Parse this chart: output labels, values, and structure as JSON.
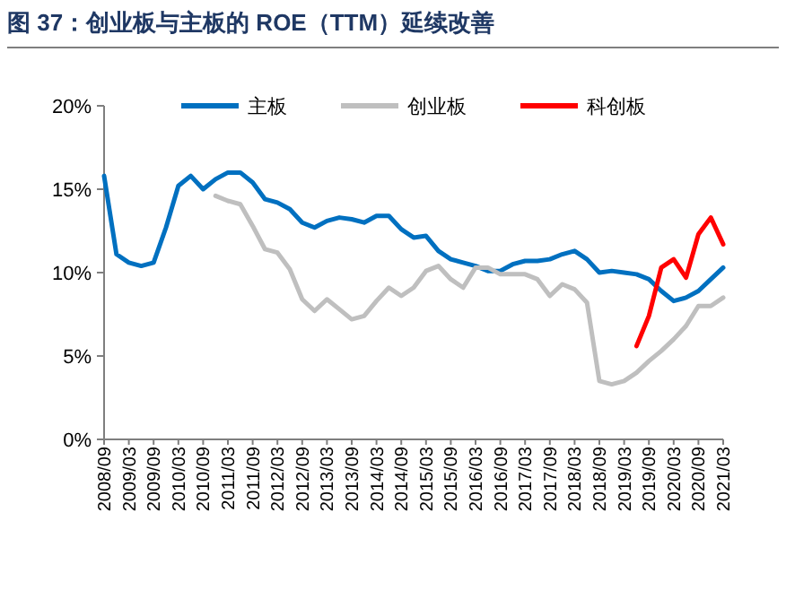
{
  "chart_data": {
    "type": "line",
    "title": "图 37：创业板与主板的 ROE（TTM）延续改善",
    "categories": [
      "2008/09",
      null,
      "2009/03",
      null,
      "2009/09",
      null,
      "2010/03",
      null,
      "2010/09",
      null,
      "2011/03",
      null,
      "2011/09",
      null,
      "2012/03",
      null,
      "2012/09",
      null,
      "2013/03",
      null,
      "2013/09",
      null,
      "2014/03",
      null,
      "2014/09",
      null,
      "2015/03",
      null,
      "2015/09",
      null,
      "2016/03",
      null,
      "2016/09",
      null,
      "2017/03",
      null,
      "2017/09",
      null,
      "2018/03",
      null,
      "2018/09",
      null,
      "2019/03",
      null,
      "2019/09",
      null,
      "2020/03",
      null,
      "2020/09",
      null,
      "2021/03"
    ],
    "series": [
      {
        "name": "主板",
        "color": "#0070c0",
        "values": [
          15.8,
          11.1,
          10.6,
          10.4,
          10.6,
          12.7,
          15.2,
          15.8,
          15.0,
          15.6,
          16.0,
          16.0,
          15.4,
          14.4,
          14.2,
          13.8,
          13.0,
          12.7,
          13.1,
          13.3,
          13.2,
          13.0,
          13.4,
          13.4,
          12.6,
          12.1,
          12.2,
          11.3,
          10.8,
          10.6,
          10.4,
          10.1,
          10.1,
          10.5,
          10.7,
          10.7,
          10.8,
          11.1,
          11.3,
          10.8,
          10.0,
          10.1,
          10.0,
          9.9,
          9.6,
          8.9,
          8.3,
          8.5,
          8.9,
          9.6,
          10.3
        ]
      },
      {
        "name": "创业板",
        "color": "#bfbfbf",
        "values": [
          null,
          null,
          null,
          null,
          null,
          null,
          null,
          null,
          null,
          14.6,
          14.3,
          14.1,
          12.8,
          11.4,
          11.2,
          10.2,
          8.4,
          7.7,
          8.4,
          7.8,
          7.2,
          7.4,
          8.3,
          9.1,
          8.6,
          9.1,
          10.1,
          10.4,
          9.6,
          9.1,
          10.3,
          10.3,
          9.9,
          9.9,
          9.9,
          9.6,
          8.6,
          9.3,
          9.0,
          8.2,
          3.5,
          3.3,
          3.5,
          4.0,
          4.7,
          5.3,
          6.0,
          6.8,
          8.0,
          8.0,
          8.5
        ]
      },
      {
        "name": "科创板",
        "color": "#ff0000",
        "values": [
          null,
          null,
          null,
          null,
          null,
          null,
          null,
          null,
          null,
          null,
          null,
          null,
          null,
          null,
          null,
          null,
          null,
          null,
          null,
          null,
          null,
          null,
          null,
          null,
          null,
          null,
          null,
          null,
          null,
          null,
          null,
          null,
          null,
          null,
          null,
          null,
          null,
          null,
          null,
          null,
          null,
          null,
          null,
          5.6,
          7.4,
          10.3,
          10.8,
          9.7,
          12.3,
          13.3,
          11.7
        ]
      }
    ],
    "ylim": [
      0,
      20
    ],
    "yticks": [
      {
        "value": 0,
        "label": "0%"
      },
      {
        "value": 5,
        "label": "5%"
      },
      {
        "value": 10,
        "label": "10%"
      },
      {
        "value": 15,
        "label": "15%"
      },
      {
        "value": 20,
        "label": "20%"
      }
    ],
    "grid": false,
    "legend": "top",
    "marker": "none",
    "line_style": "solid"
  }
}
